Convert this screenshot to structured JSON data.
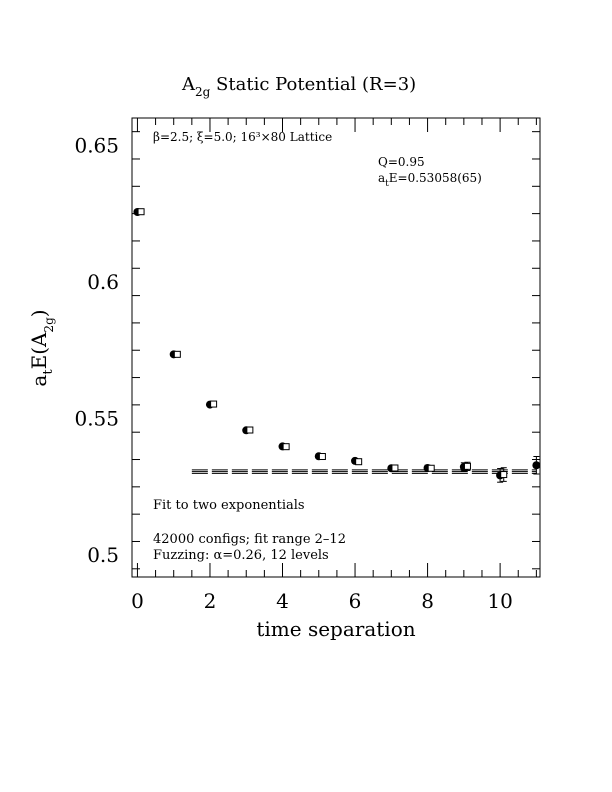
{
  "chart_data": {
    "type": "scatter",
    "title": "A",
    "title_subscript": "2g",
    "title_rest": " Static Potential (R=3)",
    "xlabel": "time separation",
    "ylabel_main": "a",
    "ylabel_sub_t": "t",
    "ylabel_mid": "E(A",
    "ylabel_sub_2g": "2g",
    "ylabel_end": ")",
    "xlim": [
      -0.15,
      11.1
    ],
    "ylim": [
      0.492,
      0.66
    ],
    "x_ticks": [
      "0",
      "2",
      "4",
      "6",
      "8",
      "10"
    ],
    "x_tick_values": [
      0,
      2,
      4,
      6,
      8,
      10
    ],
    "y_ticks": [
      "0.5",
      "0.55",
      "0.6",
      "0.65"
    ],
    "y_tick_values": [
      0.5,
      0.55,
      0.6,
      0.65
    ],
    "annotations": {
      "lattice": "β=2.5; ξ=5.0; 16³×80 Lattice",
      "q": "Q=0.95",
      "energy_prefix": "a",
      "energy_sub": "t",
      "energy_rest": "E=0.53058(65)",
      "fit_type": "Fit to two exponentials",
      "configs": "42000 configs; fit range 2–12",
      "fuzzing": "Fuzzing: α=0.26, 12 levels"
    },
    "series": [
      {
        "marker": "filled-circle",
        "x": [
          0,
          1,
          2,
          3,
          4,
          5,
          6,
          7,
          8,
          9,
          10,
          11
        ],
        "values": [
          0.6256,
          0.5735,
          0.5551,
          0.5457,
          0.5398,
          0.5362,
          0.5345,
          0.5318,
          0.5319,
          0.5323,
          0.5292,
          0.5329
        ],
        "errors": [
          0.0003,
          0.0003,
          0.0003,
          0.0004,
          0.0004,
          0.0005,
          0.0006,
          0.0008,
          0.001,
          0.0015,
          0.0025,
          0.0032
        ]
      },
      {
        "marker": "open-square",
        "x": [
          0.1,
          1.1,
          2.1,
          3.1,
          4.1,
          5.1,
          6.1,
          7.1,
          8.1,
          9.1,
          10.1
        ],
        "values": [
          0.6257,
          0.5735,
          0.5553,
          0.5458,
          0.5397,
          0.5361,
          0.5342,
          0.5319,
          0.5318,
          0.5325,
          0.5295
        ],
        "errors": [
          0.0003,
          0.0003,
          0.0003,
          0.0004,
          0.0004,
          0.0005,
          0.0006,
          0.0008,
          0.001,
          0.0015,
          0.0025
        ]
      }
    ],
    "fit": {
      "x_range": [
        1.5,
        11
      ],
      "value": 0.53058,
      "error": 0.00065
    }
  }
}
